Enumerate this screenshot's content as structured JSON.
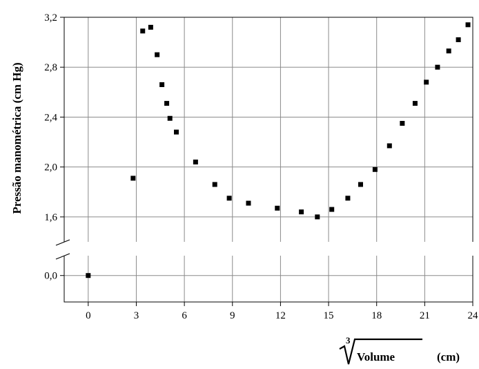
{
  "chart_data": {
    "type": "scatter",
    "title": "",
    "ylabel": "Pressão  manométrica (cm Hg)",
    "xlabel_parts": {
      "root_index": "3",
      "radicand": "Volume",
      "unit": "(cm)"
    },
    "xlim": [
      -1.5,
      24
    ],
    "x_ticks": [
      0,
      3,
      6,
      9,
      12,
      15,
      18,
      21,
      24
    ],
    "x_tick_labels": [
      "0",
      "3",
      "6",
      "9",
      "12",
      "15",
      "18",
      "21",
      "24"
    ],
    "y_break": true,
    "ylim_upper": [
      1.4,
      3.2
    ],
    "y_ticks_upper": [
      1.6,
      2.0,
      2.4,
      2.8,
      3.2
    ],
    "y_tick_labels_upper": [
      "1,6",
      "2,0",
      "2,4",
      "2,8",
      "3,2"
    ],
    "ylim_lower": [
      -0.2,
      0.15
    ],
    "y_ticks_lower": [
      0.0
    ],
    "y_tick_labels_lower": [
      "0,0"
    ],
    "grid": true,
    "points": [
      {
        "x": 0.0,
        "y": 0.0
      },
      {
        "x": 2.8,
        "y": 1.91
      },
      {
        "x": 3.4,
        "y": 3.09
      },
      {
        "x": 3.9,
        "y": 3.12
      },
      {
        "x": 4.3,
        "y": 2.9
      },
      {
        "x": 4.6,
        "y": 2.66
      },
      {
        "x": 4.9,
        "y": 2.51
      },
      {
        "x": 5.1,
        "y": 2.39
      },
      {
        "x": 5.5,
        "y": 2.28
      },
      {
        "x": 6.7,
        "y": 2.04
      },
      {
        "x": 7.9,
        "y": 1.86
      },
      {
        "x": 8.8,
        "y": 1.75
      },
      {
        "x": 10.0,
        "y": 1.71
      },
      {
        "x": 11.8,
        "y": 1.67
      },
      {
        "x": 13.3,
        "y": 1.64
      },
      {
        "x": 14.3,
        "y": 1.6
      },
      {
        "x": 15.2,
        "y": 1.66
      },
      {
        "x": 16.2,
        "y": 1.75
      },
      {
        "x": 17.0,
        "y": 1.86
      },
      {
        "x": 17.9,
        "y": 1.98
      },
      {
        "x": 18.8,
        "y": 2.17
      },
      {
        "x": 19.6,
        "y": 2.35
      },
      {
        "x": 20.4,
        "y": 2.51
      },
      {
        "x": 21.1,
        "y": 2.68
      },
      {
        "x": 21.8,
        "y": 2.8
      },
      {
        "x": 22.5,
        "y": 2.93
      },
      {
        "x": 23.1,
        "y": 3.02
      },
      {
        "x": 23.7,
        "y": 3.14
      }
    ]
  }
}
